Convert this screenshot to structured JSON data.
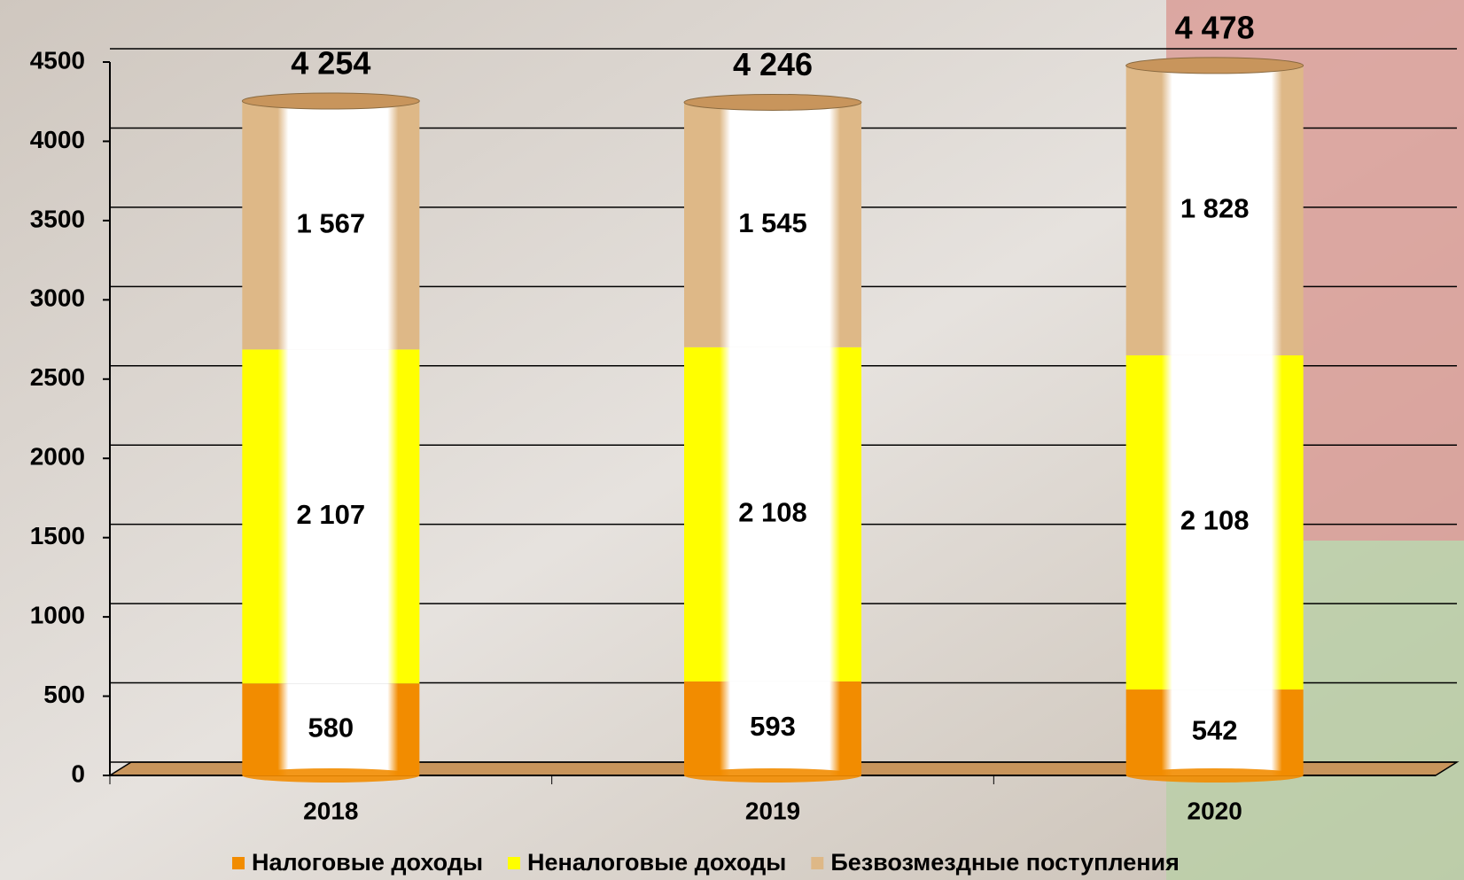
{
  "chart_data": {
    "type": "bar",
    "stacked": true,
    "categories": [
      "2018",
      "2019",
      "2020"
    ],
    "series": [
      {
        "name": "Налоговые доходы",
        "color": "#f28c00",
        "values": [
          580,
          593,
          542
        ],
        "value_labels": [
          "580",
          "593",
          "542"
        ]
      },
      {
        "name": "Неналоговые доходы",
        "color": "#ffff00",
        "values": [
          2107,
          2108,
          2108
        ],
        "value_labels": [
          "2 107",
          "2 108",
          "2 108"
        ]
      },
      {
        "name": "Безвозмездные поступления",
        "color": "#deb887",
        "values": [
          1567,
          1545,
          1828
        ],
        "value_labels": [
          "1 567",
          "1 545",
          "1 828"
        ]
      }
    ],
    "totals": [
      4254,
      4246,
      4478
    ],
    "total_labels": [
      "4 254",
      "4 246",
      "4 478"
    ],
    "ylim": [
      0,
      4500
    ],
    "yticks": [
      0,
      500,
      1000,
      1500,
      2000,
      2500,
      3000,
      3500,
      4000,
      4500
    ],
    "grid": true,
    "legend": "bottom"
  }
}
